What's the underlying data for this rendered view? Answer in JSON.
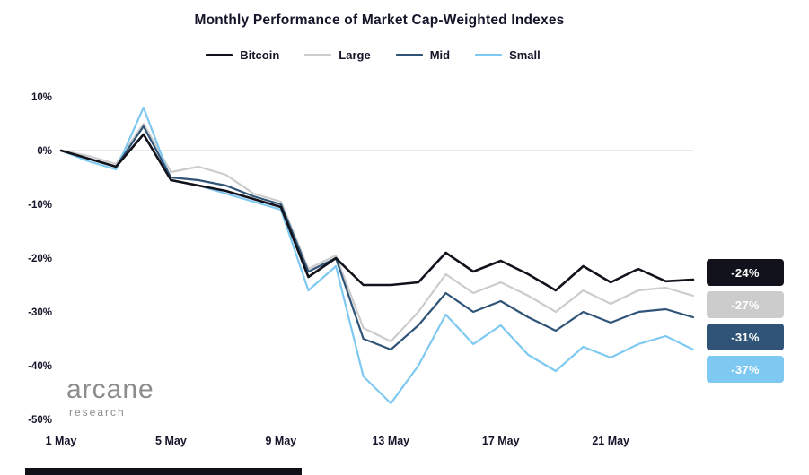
{
  "chart_data": {
    "type": "line",
    "title": "Monthly Performance of Market Cap-Weighted Indexes",
    "xlabel": "",
    "ylabel": "",
    "xlim": [
      1,
      24
    ],
    "ylim": [
      -50,
      10
    ],
    "grid": "single horizontal gridline at 0%",
    "legend_position": "top",
    "x": [
      1,
      2,
      3,
      4,
      5,
      6,
      7,
      8,
      9,
      10,
      11,
      12,
      13,
      14,
      15,
      16,
      17,
      18,
      19,
      20,
      21,
      22,
      23,
      24
    ],
    "xticks": [
      {
        "value": 1,
        "label": "1 May"
      },
      {
        "value": 5,
        "label": "5 May"
      },
      {
        "value": 9,
        "label": "9 May"
      },
      {
        "value": 13,
        "label": "13 May"
      },
      {
        "value": 17,
        "label": "17 May"
      },
      {
        "value": 21,
        "label": "21 May"
      }
    ],
    "yticks": [
      {
        "value": 10,
        "label": "10%"
      },
      {
        "value": 0,
        "label": "0%"
      },
      {
        "value": -10,
        "label": "-10%"
      },
      {
        "value": -20,
        "label": "-20%"
      },
      {
        "value": -30,
        "label": "-30%"
      },
      {
        "value": -40,
        "label": "-40%"
      },
      {
        "value": -50,
        "label": "-50%"
      }
    ],
    "series": [
      {
        "name": "Bitcoin",
        "color": "#12121c",
        "end_label": "-24%",
        "values": [
          0,
          -1.5,
          -3,
          3,
          -5.5,
          -6.5,
          -7.5,
          -9,
          -10.5,
          -23.5,
          -20,
          -25,
          -25,
          -24.5,
          -19,
          -22.5,
          -20.5,
          -23,
          -26,
          -21.5,
          -24.5,
          -22,
          -24.3,
          -24
        ]
      },
      {
        "name": "Large",
        "color": "#cccccc",
        "end_label": "-27%",
        "values": [
          0,
          -1,
          -2.5,
          5,
          -4,
          -3,
          -4.5,
          -8,
          -9.5,
          -22,
          -19.5,
          -33,
          -35.5,
          -30,
          -23,
          -26.5,
          -24.5,
          -27,
          -30,
          -26,
          -28.5,
          -26,
          -25.5,
          -27
        ]
      },
      {
        "name": "Mid",
        "color": "#2f5478",
        "end_label": "-31%",
        "values": [
          0,
          -1.5,
          -3,
          4.5,
          -5,
          -5.5,
          -6.5,
          -8.5,
          -10,
          -22.5,
          -20,
          -35,
          -37,
          -32.5,
          -26.5,
          -30,
          -28,
          -31,
          -33.5,
          -30,
          -32,
          -30,
          -29.5,
          -31
        ]
      },
      {
        "name": "Small",
        "color": "#7ec9f1",
        "end_label": "-37%",
        "values": [
          0,
          -2,
          -3.5,
          8,
          -5.5,
          -6.5,
          -8,
          -9.5,
          -11,
          -26,
          -21.5,
          -42,
          -47,
          -40,
          -30.5,
          -36,
          -32.5,
          -38,
          -41,
          -36.5,
          -38.5,
          -36,
          -34.5,
          -37
        ]
      }
    ]
  },
  "branding": {
    "logo_text": "arcane",
    "logo_subtext": "research"
  }
}
